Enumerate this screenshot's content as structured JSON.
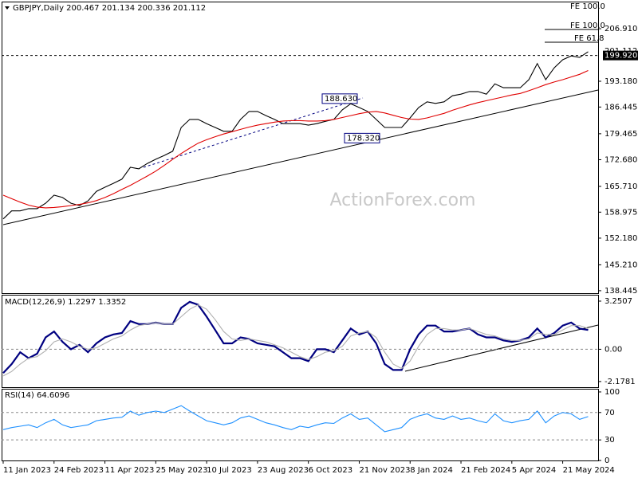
{
  "chart_data": [
    {
      "type": "line",
      "title": "GBPJPY,Daily  200.467 201.134 200.336 201.112",
      "watermark": "ActionForex.com",
      "ylim": [
        137.8,
        214.0
      ],
      "yticks": [
        {
          "value": 206.91,
          "label": "206.910"
        },
        {
          "value": 193.18,
          "label": "193.180"
        },
        186.445,
        179.465,
        {
          "value": 172.68,
          "label": "172.680"
        },
        {
          "value": 165.71,
          "label": "165.710"
        },
        158.975,
        {
          "value": 152.18,
          "label": "152.180"
        },
        {
          "value": 145.21,
          "label": "145.210"
        },
        138.445
      ],
      "price_labels": [
        {
          "value": 201.112,
          "label": "201.112"
        },
        {
          "value": 199.92,
          "label": "199.920"
        }
      ],
      "levels": [
        {
          "value": 188.63,
          "label": "188.630"
        },
        {
          "value": 178.32,
          "label": "178.320"
        }
      ],
      "annotations": [
        "FE 100.0",
        "FE 100.0",
        "FE 61.8"
      ],
      "series": [
        {
          "color": "#000000",
          "values": [
            157.2,
            159.3,
            159.3,
            159.9,
            159.9,
            161.3,
            163.4,
            162.8,
            161.3,
            160.7,
            161.9,
            164.4,
            165.5,
            166.5,
            167.6,
            170.7,
            170.3,
            171.7,
            172.8,
            173.8,
            174.9,
            181.1,
            183.2,
            183.2,
            182.1,
            181.1,
            180.1,
            180.1,
            183.2,
            185.3,
            185.3,
            184.2,
            183.2,
            182.1,
            182.1,
            182.1,
            181.7,
            182.1,
            182.7,
            183.2,
            185.7,
            187.3,
            186.3,
            185.3,
            183.2,
            181.1,
            181.1,
            181.1,
            183.6,
            186.3,
            187.8,
            187.4,
            187.8,
            189.4,
            189.8,
            190.5,
            190.5,
            189.8,
            192.5,
            191.5,
            191.5,
            191.5,
            193.6,
            197.8,
            193.6,
            196.7,
            198.8,
            199.8,
            199.4,
            200.9
          ]
        },
        {
          "color": "#e00000",
          "values": [
            163.4,
            162.5,
            161.6,
            160.8,
            160.3,
            160.1,
            160.2,
            160.4,
            160.7,
            161.0,
            161.4,
            162.0,
            162.8,
            163.8,
            164.9,
            166.0,
            167.2,
            168.4,
            169.7,
            171.2,
            172.8,
            174.3,
            175.7,
            177.0,
            177.9,
            178.7,
            179.4,
            180.0,
            180.6,
            181.2,
            181.7,
            182.1,
            182.5,
            182.8,
            182.9,
            182.9,
            182.8,
            182.8,
            182.9,
            183.2,
            183.7,
            184.2,
            184.7,
            185.1,
            185.3,
            184.9,
            184.3,
            183.7,
            183.3,
            183.2,
            183.6,
            184.2,
            184.8,
            185.6,
            186.3,
            187.0,
            187.6,
            188.1,
            188.6,
            189.1,
            189.6,
            190.0,
            190.7,
            191.5,
            192.3,
            193.0,
            193.6,
            194.3,
            195.0,
            196.0
          ]
        }
      ]
    },
    {
      "type": "line",
      "title": "MACD(12,26,9) 1.2297 1.3352",
      "ylim": [
        -2.56,
        3.68
      ],
      "yticks": [
        3.2507,
        {
          "value": 0,
          "label": "0.00"
        },
        -2.1781
      ],
      "hlines": [
        0
      ],
      "series": [
        {
          "color": "#000080",
          "values": [
            -1.6,
            -1.0,
            -0.2,
            -0.6,
            -0.3,
            0.8,
            1.2,
            0.5,
            0.0,
            0.3,
            -0.2,
            0.4,
            0.8,
            1.0,
            1.1,
            1.9,
            1.7,
            1.7,
            1.8,
            1.7,
            1.7,
            2.8,
            3.2,
            3.0,
            2.2,
            1.3,
            0.4,
            0.4,
            0.8,
            0.7,
            0.4,
            0.3,
            0.2,
            -0.2,
            -0.6,
            -0.6,
            -0.8,
            0.0,
            0.0,
            -0.2,
            0.6,
            1.4,
            1.0,
            1.2,
            0.4,
            -1.0,
            -1.4,
            -1.4,
            0.0,
            1.0,
            1.6,
            1.6,
            1.2,
            1.2,
            1.3,
            1.4,
            1.0,
            0.8,
            0.8,
            0.6,
            0.5,
            0.6,
            0.8,
            1.4,
            0.8,
            1.1,
            1.6,
            1.8,
            1.4,
            1.3
          ]
        },
        {
          "color": "#b0b0b0",
          "values": [
            -1.8,
            -1.5,
            -1.0,
            -0.6,
            -0.5,
            -0.1,
            0.5,
            0.7,
            0.5,
            0.2,
            0.0,
            0.1,
            0.4,
            0.7,
            0.9,
            1.3,
            1.6,
            1.7,
            1.8,
            1.7,
            1.7,
            2.2,
            2.7,
            3.0,
            2.7,
            2.0,
            1.2,
            0.7,
            0.6,
            0.7,
            0.6,
            0.5,
            0.3,
            0.1,
            -0.2,
            -0.5,
            -0.7,
            -0.5,
            -0.2,
            -0.1,
            0.2,
            0.9,
            1.1,
            1.2,
            0.8,
            -0.2,
            -1.0,
            -1.3,
            -0.8,
            0.2,
            1.0,
            1.4,
            1.4,
            1.3,
            1.3,
            1.4,
            1.2,
            1.0,
            0.9,
            0.7,
            0.6,
            0.6,
            0.7,
            1.1,
            1.0,
            1.0,
            1.3,
            1.6,
            1.6,
            1.4
          ]
        }
      ]
    },
    {
      "type": "line",
      "title": "RSI(14) 64.6096",
      "ylim": [
        0,
        104.6
      ],
      "yticks": [
        100,
        70,
        30,
        0
      ],
      "hlines": [
        70,
        30
      ],
      "categories": [
        "11 Jan 2023",
        null,
        null,
        null,
        null,
        null,
        "24 Feb 2023",
        null,
        null,
        null,
        null,
        null,
        "11 Apr 2023",
        null,
        null,
        null,
        null,
        null,
        "25 May 2023",
        null,
        null,
        null,
        null,
        null,
        "10 Jul 2023",
        null,
        null,
        null,
        null,
        null,
        "23 Aug 2023",
        null,
        null,
        null,
        null,
        null,
        "6 Oct 2023",
        null,
        null,
        null,
        null,
        null,
        "21 Nov 2023",
        null,
        null,
        null,
        null,
        null,
        "8 Jan 2024",
        null,
        null,
        null,
        null,
        null,
        "21 Feb 2024",
        null,
        null,
        null,
        null,
        null,
        "5 Apr 2024",
        null,
        null,
        null,
        null,
        null,
        "21 May 2024",
        null,
        null,
        null
      ],
      "series": [
        {
          "color": "#1e90ff",
          "values": [
            45,
            48,
            50,
            52,
            48,
            55,
            60,
            52,
            48,
            50,
            52,
            58,
            60,
            62,
            63,
            72,
            66,
            70,
            72,
            70,
            75,
            80,
            72,
            65,
            58,
            55,
            52,
            55,
            62,
            65,
            60,
            55,
            52,
            48,
            45,
            50,
            48,
            52,
            55,
            54,
            62,
            68,
            60,
            62,
            52,
            42,
            45,
            48,
            60,
            65,
            68,
            62,
            60,
            65,
            60,
            62,
            58,
            55,
            68,
            58,
            55,
            58,
            60,
            72,
            55,
            65,
            70,
            68,
            60,
            64
          ]
        }
      ]
    }
  ]
}
